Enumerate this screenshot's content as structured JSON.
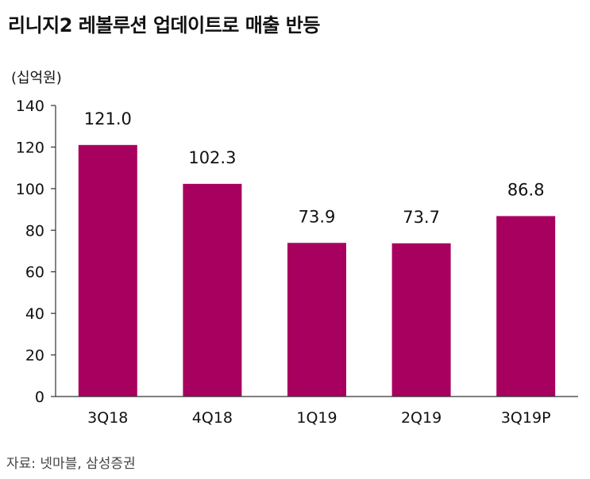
{
  "header": {
    "title": "리니지2 레볼루션 업데이트로 매출 반등",
    "unit": "(십억원)"
  },
  "footer": {
    "source": "자료: 넷마블, 삼성증권"
  },
  "colors": {
    "bar": "#A8005F",
    "axis": "#333333"
  },
  "chart_data": {
    "type": "bar",
    "title": "리니지2 레볼루션 업데이트로 매출 반등",
    "ylabel": "(십억원)",
    "categories": [
      "3Q18",
      "4Q18",
      "1Q19",
      "2Q19",
      "3Q19P"
    ],
    "values": [
      121.0,
      102.3,
      73.9,
      73.7,
      86.8
    ],
    "value_labels": [
      "121.0",
      "102.3",
      "73.9",
      "73.7",
      "86.8"
    ],
    "ylim": [
      0,
      140
    ],
    "yticks": [
      0,
      20,
      40,
      60,
      80,
      100,
      120,
      140
    ],
    "grid": false,
    "legend": "none"
  }
}
